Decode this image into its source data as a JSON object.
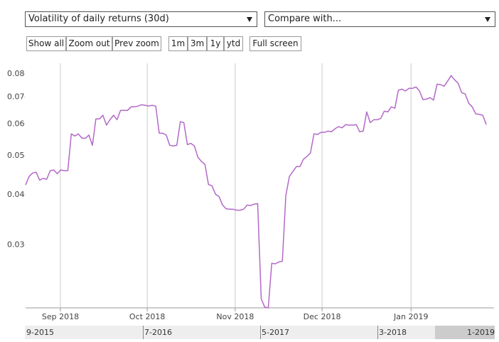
{
  "ui": {
    "metric_select": "Volatility of daily returns (30d)",
    "compare_select": "Compare with...",
    "zoom_buttons": [
      "Show all",
      "Zoom out",
      "Prev zoom"
    ],
    "range_buttons": [
      "1m",
      "3m",
      "1y",
      "ytd"
    ],
    "fullscreen_button": "Full screen",
    "navigator_labels": [
      "9-2015",
      "7-2016",
      "5-2017",
      "3-2018",
      "1-2019"
    ]
  },
  "chart_data": {
    "type": "line",
    "log_y": true,
    "color": "#b369c8",
    "values": [
      0.0423,
      0.0444,
      0.0453,
      0.0455,
      0.0435,
      0.0439,
      0.0437,
      0.0459,
      0.0461,
      0.0451,
      0.0461,
      0.0459,
      0.0459,
      0.0567,
      0.056,
      0.0567,
      0.0553,
      0.0553,
      0.0563,
      0.0531,
      0.0618,
      0.0618,
      0.0631,
      0.0596,
      0.0615,
      0.0631,
      0.0615,
      0.0649,
      0.0649,
      0.0649,
      0.0662,
      0.0662,
      0.0665,
      0.067,
      0.0668,
      0.0665,
      0.0668,
      0.0665,
      0.0569,
      0.0569,
      0.0563,
      0.0531,
      0.0529,
      0.0531,
      0.0608,
      0.0605,
      0.0533,
      0.0537,
      0.0529,
      0.0496,
      0.0484,
      0.0476,
      0.0424,
      0.0421,
      0.0401,
      0.0396,
      0.0377,
      0.0369,
      0.0368,
      0.0368,
      0.0366,
      0.0366,
      0.0368,
      0.0377,
      0.0376,
      0.0379,
      0.038,
      0.022,
      0.021,
      0.0209,
      0.027,
      0.0269,
      0.0272,
      0.0273,
      0.0398,
      0.0444,
      0.0457,
      0.047,
      0.047,
      0.049,
      0.0498,
      0.0508,
      0.0567,
      0.0565,
      0.0572,
      0.0572,
      0.0576,
      0.0574,
      0.0584,
      0.0591,
      0.0587,
      0.0598,
      0.0596,
      0.0596,
      0.0598,
      0.0574,
      0.0576,
      0.0643,
      0.0605,
      0.0615,
      0.0615,
      0.062,
      0.0646,
      0.0643,
      0.0662,
      0.0657,
      0.0728,
      0.0733,
      0.0725,
      0.0736,
      0.0736,
      0.0742,
      0.0725,
      0.069,
      0.0692,
      0.0698,
      0.0688,
      0.0754,
      0.0752,
      0.0745,
      0.0767,
      0.0792,
      0.0773,
      0.0758,
      0.0718,
      0.0713,
      0.0676,
      0.0662,
      0.0636,
      0.0634,
      0.0631,
      0.0598
    ],
    "xlim": [
      0,
      133.2
    ],
    "xticks": [
      {
        "value": 9.9,
        "label": "Sep 2018"
      },
      {
        "value": 34.6,
        "label": "Oct 2018"
      },
      {
        "value": 59.6,
        "label": "Nov 2018"
      },
      {
        "value": 84.3,
        "label": "Dec 2018"
      },
      {
        "value": 109.6,
        "label": "Jan 2019"
      }
    ],
    "ylim": [
      0.0209,
      0.085
    ],
    "yticks": [
      0.03,
      0.04,
      0.05,
      0.06,
      0.07,
      0.08
    ],
    "grid": true
  }
}
